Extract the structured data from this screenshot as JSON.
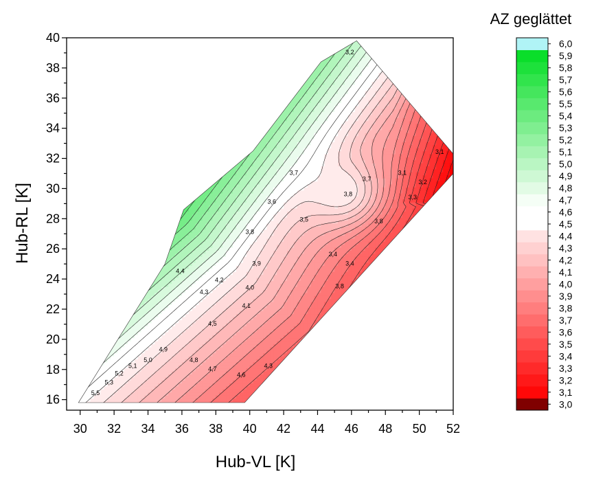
{
  "chart_data": {
    "type": "contour",
    "xlabel": "Hub-VL [K]",
    "ylabel": "Hub-RL [K]",
    "xlim": [
      29.2,
      52
    ],
    "ylim": [
      15.3,
      40
    ],
    "x_ticks": [
      "30",
      "32",
      "34",
      "36",
      "38",
      "40",
      "42",
      "44",
      "46",
      "48",
      "50",
      "52"
    ],
    "y_ticks": [
      "16",
      "18",
      "20",
      "22",
      "24",
      "26",
      "28",
      "30",
      "32",
      "34",
      "36",
      "38",
      "40"
    ],
    "region_vertices": [
      [
        29.9,
        15.8
      ],
      [
        39.7,
        15.8
      ],
      [
        52,
        31
      ],
      [
        52,
        32.3
      ],
      [
        46.3,
        39.8
      ],
      [
        44.2,
        38.4
      ],
      [
        40.2,
        32.5
      ],
      [
        36.1,
        28.6
      ],
      [
        35,
        25
      ]
    ],
    "colorbar": {
      "title": "AZ geglättet",
      "levels": [
        3.0,
        3.1,
        3.2,
        3.3,
        3.4,
        3.5,
        3.6,
        3.7,
        3.8,
        3.9,
        4.0,
        4.1,
        4.2,
        4.3,
        4.4,
        4.5,
        4.6,
        4.7,
        4.8,
        4.9,
        5.0,
        5.1,
        5.2,
        5.3,
        5.4,
        5.5,
        5.6,
        5.7,
        5.8,
        5.9,
        6.0
      ],
      "labels": [
        "3,0",
        "3,1",
        "3,2",
        "3,3",
        "3,4",
        "3,5",
        "3,6",
        "3,7",
        "3,8",
        "3,9",
        "4,0",
        "4,1",
        "4,2",
        "4,3",
        "4,4",
        "4,5",
        "4,6",
        "4,7",
        "4,8",
        "4,9",
        "5,0",
        "5,1",
        "5,2",
        "5,3",
        "5,4",
        "5,5",
        "5,6",
        "5,7",
        "5,8",
        "5,9",
        "6,0"
      ],
      "low_color": "#800000",
      "high_color": "#b0f4f6",
      "red_color": "#ff0000",
      "mid_color": "#ffffff",
      "green_color": "#00dd22"
    },
    "contour_labels": [
      {
        "text": "3,2",
        "x": 45.9,
        "y": 38.9
      },
      {
        "text": "3,1",
        "x": 51.2,
        "y": 32.3
      },
      {
        "text": "3,1",
        "x": 49.0,
        "y": 30.9
      },
      {
        "text": "3,2",
        "x": 50.2,
        "y": 30.3
      },
      {
        "text": "3,3",
        "x": 49.6,
        "y": 29.3
      },
      {
        "text": "3,7",
        "x": 42.6,
        "y": 30.9
      },
      {
        "text": "3,7",
        "x": 46.9,
        "y": 30.5
      },
      {
        "text": "3,8",
        "x": 45.8,
        "y": 29.5
      },
      {
        "text": "3,6",
        "x": 41.3,
        "y": 29.0
      },
      {
        "text": "3,5",
        "x": 43.2,
        "y": 27.8
      },
      {
        "text": "3,8",
        "x": 47.6,
        "y": 27.7
      },
      {
        "text": "3,8",
        "x": 40.0,
        "y": 27.0
      },
      {
        "text": "3,4",
        "x": 44.9,
        "y": 25.5
      },
      {
        "text": "3,4",
        "x": 45.9,
        "y": 24.9
      },
      {
        "text": "3,9",
        "x": 40.4,
        "y": 24.9
      },
      {
        "text": "3,8",
        "x": 45.3,
        "y": 23.4
      },
      {
        "text": "4,4",
        "x": 35.9,
        "y": 24.4
      },
      {
        "text": "4,2",
        "x": 38.2,
        "y": 23.8
      },
      {
        "text": "4,0",
        "x": 40.0,
        "y": 23.3
      },
      {
        "text": "4,3",
        "x": 37.3,
        "y": 23.0
      },
      {
        "text": "4,1",
        "x": 39.8,
        "y": 22.1
      },
      {
        "text": "4,5",
        "x": 37.8,
        "y": 20.9
      },
      {
        "text": "4,9",
        "x": 34.9,
        "y": 19.2
      },
      {
        "text": "5,0",
        "x": 34.0,
        "y": 18.5
      },
      {
        "text": "4,8",
        "x": 36.7,
        "y": 18.5
      },
      {
        "text": "4,3",
        "x": 41.1,
        "y": 18.1
      },
      {
        "text": "5,1",
        "x": 33.1,
        "y": 18.1
      },
      {
        "text": "4,7",
        "x": 37.8,
        "y": 17.9
      },
      {
        "text": "5,2",
        "x": 32.3,
        "y": 17.6
      },
      {
        "text": "4,6",
        "x": 39.5,
        "y": 17.5
      },
      {
        "text": "5,3",
        "x": 31.7,
        "y": 17.0
      },
      {
        "text": "5,5",
        "x": 30.9,
        "y": 16.3
      }
    ]
  }
}
